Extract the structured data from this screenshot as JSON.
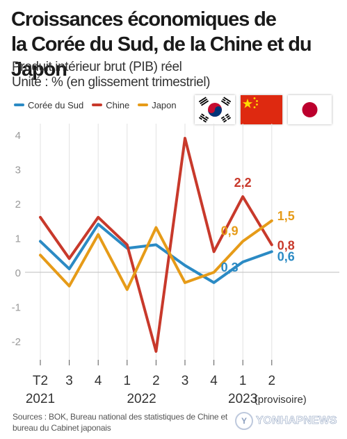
{
  "title_line1": "Croissances économiques de",
  "title_line2": "la Corée du Sud, de la Chine et du Japon",
  "subtitle_line1": "Produit intérieur brut (PIB) réel",
  "subtitle_line2": "Unité : % (en glissement trimestriel)",
  "flags": [
    "south-korea-flag",
    "china-flag",
    "japan-flag"
  ],
  "sources_line1": "Sources : BOK, Bureau national des statistiques de Chine et",
  "sources_line2": "bureau du Cabinet japonais",
  "watermark": "YONHAPNEWS",
  "chart_data": {
    "type": "line",
    "categories": [
      "T2",
      "3",
      "4",
      "1",
      "2",
      "3",
      "4",
      "1",
      "2"
    ],
    "year_labels": [
      {
        "label": "2021",
        "index": 0
      },
      {
        "label": "2022",
        "index": 3.5
      },
      {
        "label": "2023",
        "index": 7
      },
      {
        "label": "(provisoire)",
        "index": 8.3
      }
    ],
    "series": [
      {
        "name": "Corée du Sud",
        "color": "#2b8ac4",
        "values": [
          0.9,
          0.1,
          1.4,
          0.7,
          0.8,
          0.2,
          -0.3,
          0.3,
          0.6
        ]
      },
      {
        "name": "Chine",
        "color": "#c8392b",
        "values": [
          1.6,
          0.4,
          1.6,
          0.8,
          -2.3,
          3.9,
          0.6,
          2.2,
          0.8
        ]
      },
      {
        "name": "Japon",
        "color": "#e69b18",
        "values": [
          0.5,
          -0.4,
          1.1,
          -0.5,
          1.3,
          -0.3,
          0.0,
          0.9,
          1.5
        ]
      }
    ],
    "annotations": [
      {
        "series": 1,
        "index": 7,
        "label": "2,2"
      },
      {
        "series": 2,
        "index": 7,
        "label": "0,9"
      },
      {
        "series": 0,
        "index": 7,
        "label": "0,3"
      },
      {
        "series": 2,
        "index": 8,
        "label": "1,5"
      },
      {
        "series": 1,
        "index": 8,
        "label": "0,8"
      },
      {
        "series": 0,
        "index": 8,
        "label": "0,6"
      }
    ],
    "yticks": [
      4,
      3,
      2,
      1,
      0,
      -1,
      -2
    ],
    "ylim": [
      -2.6,
      4.3
    ],
    "grid": "vertical"
  }
}
